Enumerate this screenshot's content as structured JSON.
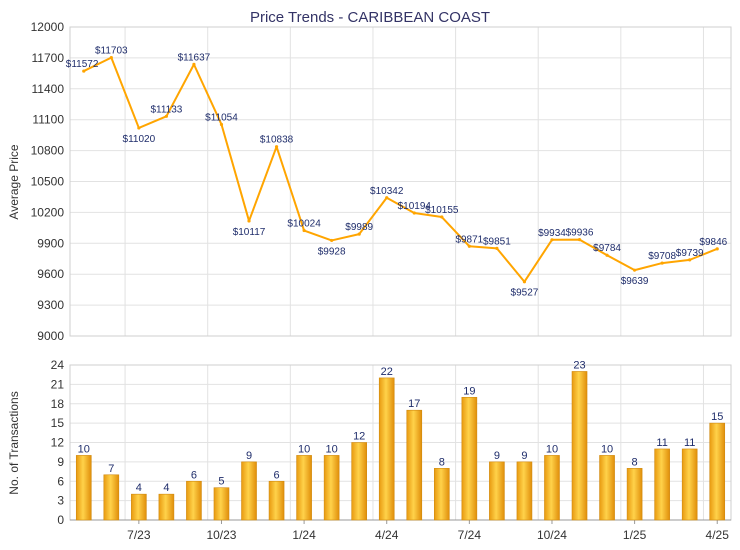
{
  "chart_data": [
    {
      "type": "line",
      "title": "Price Trends - CARIBBEAN COAST",
      "ylabel": "Average Price",
      "ylim": [
        9000,
        12000
      ],
      "yticks": [
        9000,
        9300,
        9600,
        9900,
        10200,
        10500,
        10800,
        11100,
        11400,
        11700,
        12000
      ],
      "grid": true,
      "color": "#ffa500",
      "values": [
        11572,
        11703,
        11020,
        11133,
        11637,
        11054,
        10117,
        10838,
        10024,
        9928,
        9989,
        10342,
        10194,
        10155,
        9871,
        9851,
        9527,
        9934,
        9936,
        9784,
        9639,
        9708,
        9739,
        9846
      ],
      "labels": [
        "$11572",
        "$11703",
        "$11020",
        "$11133",
        "$11637",
        "$11054",
        "$10117",
        "$10838",
        "$10024",
        "$9928",
        "$9989",
        "$10342",
        "$10194",
        "$10155",
        "$9871",
        "$9851",
        "$9527",
        "$9934",
        "$9936",
        "$9784",
        "$9639",
        "$9708",
        "$9739",
        "$9846"
      ]
    },
    {
      "type": "bar",
      "ylabel": "No. of Transactions",
      "ylim": [
        0,
        24
      ],
      "yticks": [
        0,
        3,
        6,
        9,
        12,
        15,
        18,
        21,
        24
      ],
      "grid": true,
      "color": "#f0b020",
      "values": [
        10,
        7,
        4,
        4,
        6,
        5,
        9,
        6,
        10,
        10,
        12,
        22,
        17,
        8,
        19,
        9,
        9,
        10,
        23,
        10,
        8,
        11,
        11,
        15
      ],
      "xticks": [
        {
          "index": 2,
          "label": "7/23"
        },
        {
          "index": 5,
          "label": "10/23"
        },
        {
          "index": 8,
          "label": "1/24"
        },
        {
          "index": 11,
          "label": "4/24"
        },
        {
          "index": 14,
          "label": "7/24"
        },
        {
          "index": 17,
          "label": "10/24"
        },
        {
          "index": 20,
          "label": "1/25"
        },
        {
          "index": 23,
          "label": "4/25"
        }
      ]
    }
  ]
}
